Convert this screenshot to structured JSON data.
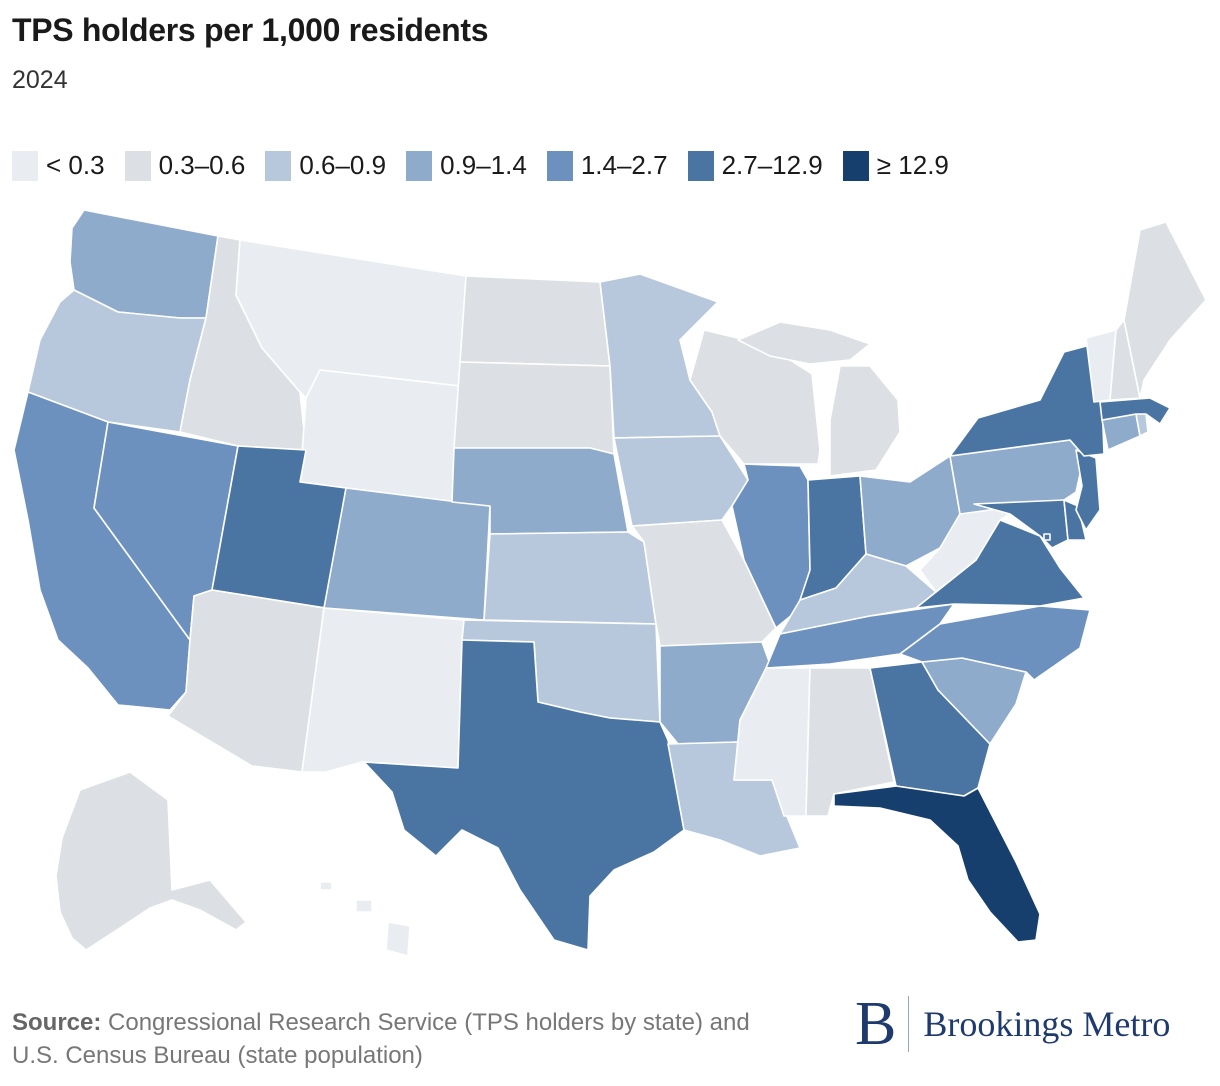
{
  "header": {
    "title": "TPS holders per 1,000 residents",
    "subtitle": "2024"
  },
  "legend": [
    {
      "label": "< 0.3",
      "color": "#e9edf2"
    },
    {
      "label": "0.3–0.6",
      "color": "#dcdfe3"
    },
    {
      "label": "0.6–0.9",
      "color": "#b7c8dd"
    },
    {
      "label": "0.9–1.4",
      "color": "#8fabcc"
    },
    {
      "label": "1.4–2.7",
      "color": "#6d91bf"
    },
    {
      "label": "2.7–12.9",
      "color": "#4a75a3"
    },
    {
      "label": "≥ 12.9",
      "color": "#163f6e"
    }
  ],
  "states": [
    {
      "id": "WA",
      "bin": 3
    },
    {
      "id": "OR",
      "bin": 2
    },
    {
      "id": "CA",
      "bin": 4
    },
    {
      "id": "NV",
      "bin": 4
    },
    {
      "id": "ID",
      "bin": 1
    },
    {
      "id": "MT",
      "bin": 0
    },
    {
      "id": "WY",
      "bin": 0
    },
    {
      "id": "UT",
      "bin": 5
    },
    {
      "id": "AZ",
      "bin": 1
    },
    {
      "id": "CO",
      "bin": 3
    },
    {
      "id": "NM",
      "bin": 0
    },
    {
      "id": "ND",
      "bin": 1
    },
    {
      "id": "SD",
      "bin": 1
    },
    {
      "id": "NE",
      "bin": 3
    },
    {
      "id": "KS",
      "bin": 2
    },
    {
      "id": "OK",
      "bin": 2
    },
    {
      "id": "TX",
      "bin": 5
    },
    {
      "id": "MN",
      "bin": 2
    },
    {
      "id": "IA",
      "bin": 2
    },
    {
      "id": "MO",
      "bin": 1
    },
    {
      "id": "AR",
      "bin": 3
    },
    {
      "id": "LA",
      "bin": 2
    },
    {
      "id": "WI",
      "bin": 1
    },
    {
      "id": "IL",
      "bin": 4
    },
    {
      "id": "MI",
      "bin": 1
    },
    {
      "id": "IN",
      "bin": 5
    },
    {
      "id": "OH",
      "bin": 3
    },
    {
      "id": "KY",
      "bin": 2
    },
    {
      "id": "TN",
      "bin": 4
    },
    {
      "id": "MS",
      "bin": 0
    },
    {
      "id": "AL",
      "bin": 1
    },
    {
      "id": "GA",
      "bin": 5
    },
    {
      "id": "FL",
      "bin": 6
    },
    {
      "id": "SC",
      "bin": 3
    },
    {
      "id": "NC",
      "bin": 4
    },
    {
      "id": "VA",
      "bin": 5
    },
    {
      "id": "WV",
      "bin": 0
    },
    {
      "id": "PA",
      "bin": 3
    },
    {
      "id": "NY",
      "bin": 5
    },
    {
      "id": "VT",
      "bin": 0
    },
    {
      "id": "NH",
      "bin": 1
    },
    {
      "id": "ME",
      "bin": 1
    },
    {
      "id": "MA",
      "bin": 5
    },
    {
      "id": "CT",
      "bin": 3
    },
    {
      "id": "RI",
      "bin": 2
    },
    {
      "id": "NJ",
      "bin": 5
    },
    {
      "id": "DE",
      "bin": 5
    },
    {
      "id": "MD",
      "bin": 5
    },
    {
      "id": "DC",
      "bin": 5
    },
    {
      "id": "AK",
      "bin": 1
    },
    {
      "id": "HI",
      "bin": 0
    }
  ],
  "footer": {
    "source_label": "Source:",
    "source_text": " Congressional Research Service (TPS holders by state) and U.S. Census Bureau (state population)",
    "logo_letter": "B",
    "logo_text": "Brookings Metro"
  }
}
